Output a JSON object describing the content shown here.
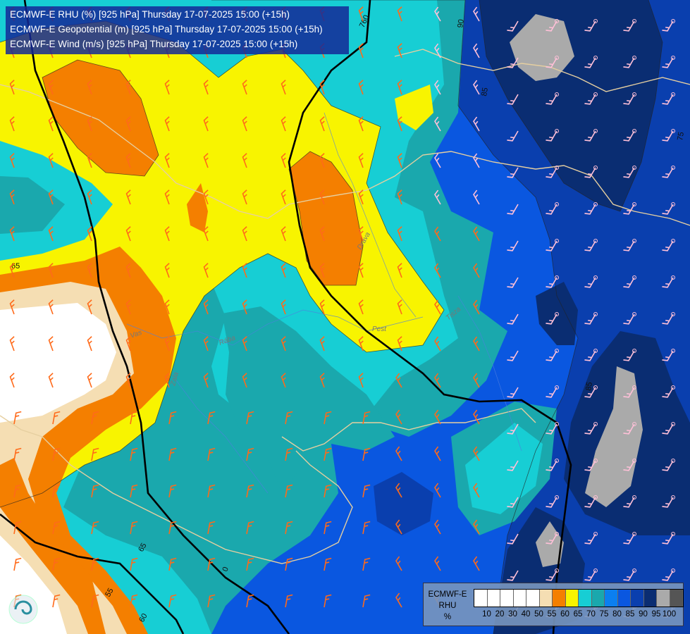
{
  "header": {
    "line1": "ECMWF-E RHU (%) [925 hPa] Thursday 17-07-2025 15:00 (+15h)",
    "line2": "ECMWF-E Geopotential (m) [925 hPa] Thursday 17-07-2025 15:00 (+15h)",
    "line3": "ECMWF-E Wind (m/s) [925 hPa] Thursday 17-07-2025 15:00 (+15h)"
  },
  "legend": {
    "line1": "ECMWF-E",
    "line2": "RHU",
    "line3": "%",
    "ticks": [
      "10",
      "20",
      "30",
      "40",
      "50",
      "55",
      "60",
      "65",
      "70",
      "75",
      "80",
      "85",
      "90",
      "95",
      "100"
    ],
    "colors": [
      "#ffffff",
      "#ffffff",
      "#ffffff",
      "#ffffff",
      "#ffffff",
      "#f5deb3",
      "#f47f00",
      "#f8f400",
      "#17ced4",
      "#1aa8ad",
      "#0b7ff0",
      "#0a57e0",
      "#0a3fae",
      "#0a2d72",
      "#aaaaaa",
      "#555555"
    ]
  },
  "map_labels": {
    "geopotential": [
      "760",
      "0"
    ],
    "rhu_contours": [
      "65",
      "85",
      "75",
      "85",
      "65",
      "55",
      "60",
      "90"
    ],
    "rivers": [
      "Drava",
      "Zala",
      "Rába",
      "Tisza",
      "Pest",
      "Vas"
    ]
  },
  "palette": {
    "dry_white": "#ffffff",
    "wheat": "#f5deb3",
    "orange": "#f47f00",
    "yellow": "#f8f400",
    "cyan": "#17ced4",
    "teal": "#1aa8ad",
    "blue": "#0b7ff0",
    "mid_blue": "#0a57e0",
    "dark_blue": "#0a3fae",
    "navy": "#0a2d72",
    "gray": "#aaaaaa",
    "wind_orange": "#ff6a1a",
    "wind_pink": "#ffc0d8",
    "border": "#e6cfa0"
  }
}
